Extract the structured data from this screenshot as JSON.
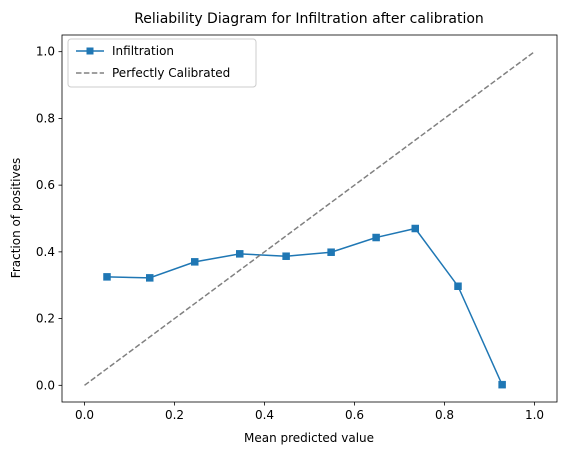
{
  "chart_data": {
    "type": "line",
    "title": "Reliability Diagram for Infiltration after calibration",
    "xlabel": "Mean predicted value",
    "ylabel": "Fraction of positives",
    "xlim": [
      -0.05,
      1.05
    ],
    "ylim": [
      -0.05,
      1.05
    ],
    "xticks": [
      "0.0",
      "0.2",
      "0.4",
      "0.6",
      "0.8",
      "1.0"
    ],
    "yticks": [
      "0.0",
      "0.2",
      "0.4",
      "0.6",
      "0.8",
      "1.0"
    ],
    "grid": false,
    "legend_position": "top-left",
    "series": [
      {
        "name": "Infiltration",
        "color": "#1f77b4",
        "marker": "square",
        "line_style": "solid",
        "x": [
          0.05,
          0.145,
          0.245,
          0.345,
          0.448,
          0.548,
          0.648,
          0.735,
          0.83,
          0.928
        ],
        "y": [
          0.325,
          0.322,
          0.37,
          0.394,
          0.387,
          0.399,
          0.443,
          0.47,
          0.297,
          0.002
        ]
      },
      {
        "name": "Perfectly Calibrated",
        "color": "#808080",
        "marker": "none",
        "line_style": "dashed",
        "x": [
          0,
          1
        ],
        "y": [
          0,
          1
        ]
      }
    ]
  }
}
